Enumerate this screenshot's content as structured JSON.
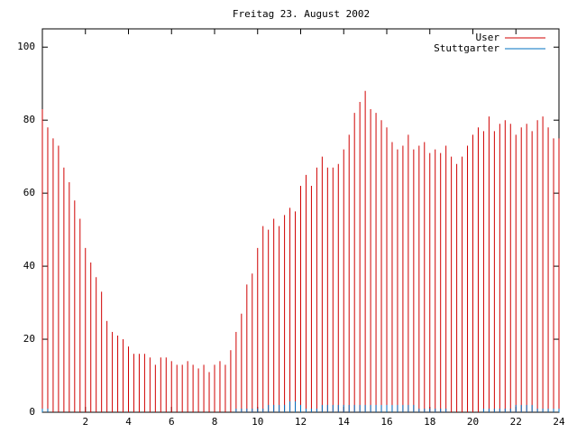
{
  "chart_data": {
    "type": "impulse",
    "title": "Freitag 23. August 2002",
    "x": [
      0,
      0.25,
      0.5,
      0.75,
      1,
      1.25,
      1.5,
      1.75,
      2,
      2.25,
      2.5,
      2.75,
      3,
      3.25,
      3.5,
      3.75,
      4,
      4.25,
      4.5,
      4.75,
      5,
      5.25,
      5.5,
      5.75,
      6,
      6.25,
      6.5,
      6.75,
      7,
      7.25,
      7.5,
      7.75,
      8,
      8.25,
      8.5,
      8.75,
      9,
      9.25,
      9.5,
      9.75,
      10,
      10.25,
      10.5,
      10.75,
      11,
      11.25,
      11.5,
      11.75,
      12,
      12.25,
      12.5,
      12.75,
      13,
      13.25,
      13.5,
      13.75,
      14,
      14.25,
      14.5,
      14.75,
      15,
      15.25,
      15.5,
      15.75,
      16,
      16.25,
      16.5,
      16.75,
      17,
      17.25,
      17.5,
      17.75,
      18,
      18.25,
      18.5,
      18.75,
      19,
      19.25,
      19.5,
      19.75,
      20,
      20.25,
      20.5,
      20.75,
      21,
      21.25,
      21.5,
      21.75,
      22,
      22.25,
      22.5,
      22.75,
      23,
      23.25,
      23.5,
      23.75,
      24
    ],
    "series": [
      {
        "name": "User",
        "color": "#d00000",
        "values": [
          83,
          78,
          75,
          73,
          67,
          63,
          58,
          53,
          45,
          41,
          37,
          33,
          25,
          22,
          21,
          20,
          18,
          16,
          16,
          16,
          15,
          13,
          15,
          15,
          14,
          13,
          13,
          14,
          13,
          12,
          13,
          11,
          13,
          14,
          13,
          17,
          22,
          27,
          35,
          38,
          45,
          51,
          50,
          53,
          51,
          54,
          56,
          55,
          62,
          65,
          62,
          67,
          70,
          67,
          67,
          68,
          72,
          76,
          82,
          85,
          88,
          83,
          82,
          80,
          78,
          74,
          72,
          73,
          76,
          72,
          73,
          74,
          71,
          72,
          71,
          73,
          70,
          68,
          70,
          73,
          76,
          78,
          77,
          81,
          77,
          79,
          80,
          79,
          76,
          78,
          79,
          77,
          80,
          81,
          78,
          75,
          75
        ]
      },
      {
        "name": "Stuttgarter",
        "color": "#0070c0",
        "values": [
          1,
          1,
          0,
          0,
          0,
          0,
          0,
          0,
          0,
          0,
          0,
          0,
          0,
          0,
          0,
          0,
          0,
          0,
          0,
          0,
          0,
          0,
          0,
          0,
          0,
          0,
          0,
          0,
          0,
          0,
          0,
          0,
          0,
          0,
          0,
          0,
          1,
          1,
          1,
          1,
          1,
          1,
          2,
          2,
          2,
          2,
          3,
          3,
          2,
          1,
          1,
          1,
          2,
          2,
          2,
          2,
          2,
          2,
          2,
          2,
          2,
          2,
          2,
          2,
          2,
          2,
          2,
          2,
          2,
          2,
          1,
          1,
          1,
          1,
          1,
          1,
          0,
          0,
          0,
          0,
          0,
          0,
          1,
          1,
          1,
          1,
          1,
          1,
          2,
          2,
          2,
          2,
          1,
          1,
          1,
          1,
          1
        ]
      }
    ],
    "xlim": [
      0,
      24
    ],
    "xticks": [
      2,
      4,
      6,
      8,
      10,
      12,
      14,
      16,
      18,
      20,
      22,
      24
    ],
    "ylim": [
      0,
      105
    ],
    "yticks": [
      0,
      20,
      40,
      60,
      80,
      100
    ],
    "legend": "top right"
  }
}
